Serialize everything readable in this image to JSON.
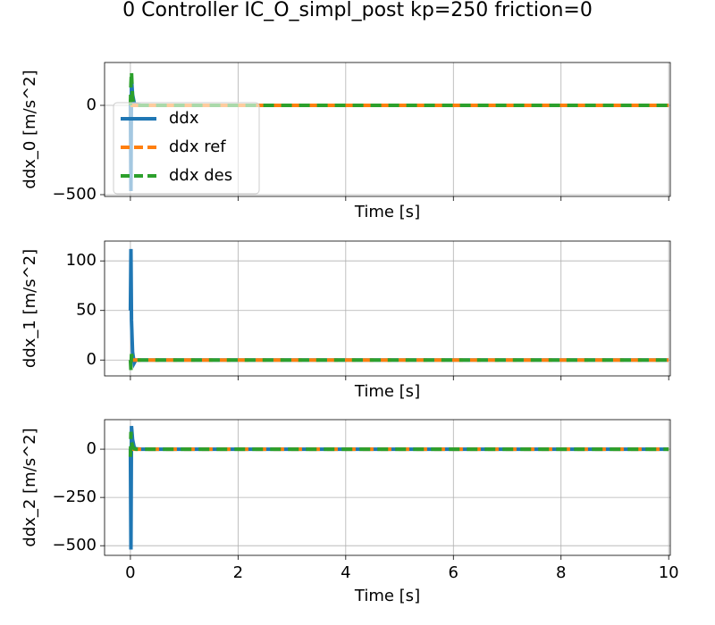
{
  "title": "0 Controller IC_O_simpl_post kp=250 friction=0",
  "chart_data": [
    {
      "type": "line",
      "xlabel": "Time [s]",
      "ylabel": "ddx_0 [m/s^2]",
      "grid": true,
      "legend": "upper left",
      "xtick_labels": false,
      "xlim": [
        -0.48,
        10.03
      ],
      "ylim": [
        -510,
        240
      ],
      "xticks": [
        0,
        2,
        4,
        6,
        8,
        10
      ],
      "yticks": [
        {
          "value": -500,
          "label": "−500"
        },
        0
      ],
      "x": [
        0,
        0.01,
        0.02,
        0.04,
        0.07,
        0.1,
        0.2,
        0.5,
        1,
        2,
        3,
        4,
        5,
        6,
        7,
        8,
        9,
        10
      ],
      "series": [
        {
          "name": "ddx",
          "color": "#1f77b4",
          "linestyle": "solid",
          "values": [
            0,
            -480,
            150,
            60,
            15,
            3,
            0,
            0,
            0,
            0,
            0,
            0,
            0,
            0,
            0,
            0,
            0,
            0
          ]
        },
        {
          "name": "ddx ref",
          "color": "#ff7f0e",
          "linestyle": "dashed",
          "values": [
            0,
            0,
            0,
            0,
            0,
            0,
            0,
            0,
            0,
            0,
            0,
            0,
            0,
            0,
            0,
            0,
            0,
            0
          ]
        },
        {
          "name": "ddx des",
          "color": "#2ca02c",
          "linestyle": "dashed",
          "values": [
            0,
            120,
            190,
            40,
            5,
            0,
            0,
            0,
            0,
            0,
            0,
            0,
            0,
            0,
            0,
            0,
            0,
            0
          ]
        }
      ]
    },
    {
      "type": "line",
      "xlabel": "Time [s]",
      "ylabel": "ddx_1 [m/s^2]",
      "grid": true,
      "xtick_labels": false,
      "xlim": [
        -0.48,
        10.03
      ],
      "ylim": [
        -16,
        120
      ],
      "xticks": [
        0,
        2,
        4,
        6,
        8,
        10
      ],
      "yticks": [
        0,
        50,
        100
      ],
      "x": [
        0,
        0.01,
        0.02,
        0.04,
        0.07,
        0.1,
        0.2,
        0.5,
        1,
        2,
        3,
        4,
        5,
        6,
        7,
        8,
        9,
        10
      ],
      "series": [
        {
          "name": "ddx",
          "color": "#1f77b4",
          "linestyle": "solid",
          "values": [
            50,
            112,
            40,
            8,
            -3,
            0,
            0,
            0,
            0,
            0,
            0,
            0,
            0,
            0,
            0,
            0,
            0,
            0
          ]
        },
        {
          "name": "ddx ref",
          "color": "#ff7f0e",
          "linestyle": "dashed",
          "values": [
            0,
            0,
            0,
            0,
            0,
            0,
            0,
            0,
            0,
            0,
            0,
            0,
            0,
            0,
            0,
            0,
            0,
            0
          ]
        },
        {
          "name": "ddx des",
          "color": "#2ca02c",
          "linestyle": "dashed",
          "values": [
            0,
            -10,
            6,
            2,
            0,
            0,
            0,
            0,
            0,
            0,
            0,
            0,
            0,
            0,
            0,
            0,
            0,
            0
          ]
        }
      ]
    },
    {
      "type": "line",
      "xlabel": "Time [s]",
      "ylabel": "ddx_2 [m/s^2]",
      "grid": true,
      "xtick_labels": true,
      "xlim": [
        -0.48,
        10.03
      ],
      "ylim": [
        -550,
        153
      ],
      "xticks": [
        0,
        2,
        4,
        6,
        8,
        10
      ],
      "yticks": [
        {
          "value": -500,
          "label": "−500"
        },
        {
          "value": -250,
          "label": "−250"
        },
        0
      ],
      "x": [
        0,
        0.01,
        0.02,
        0.04,
        0.07,
        0.1,
        0.2,
        0.5,
        1,
        2,
        3,
        4,
        5,
        6,
        7,
        8,
        9,
        10
      ],
      "series": [
        {
          "name": "ddx",
          "color": "#1f77b4",
          "linestyle": "solid",
          "values": [
            0,
            -520,
            120,
            50,
            10,
            2,
            0,
            0,
            0,
            0,
            0,
            0,
            0,
            0,
            0,
            0,
            0,
            0
          ]
        },
        {
          "name": "ddx ref",
          "color": "#ff7f0e",
          "linestyle": "dashed",
          "values": [
            0,
            0,
            0,
            0,
            0,
            0,
            0,
            0,
            0,
            0,
            0,
            0,
            0,
            0,
            0,
            0,
            0,
            0
          ]
        },
        {
          "name": "ddx des",
          "color": "#2ca02c",
          "linestyle": "dashed",
          "values": [
            -40,
            90,
            40,
            12,
            3,
            0,
            0,
            0,
            0,
            0,
            0,
            0,
            0,
            0,
            0,
            0,
            0,
            0
          ]
        }
      ]
    }
  ]
}
